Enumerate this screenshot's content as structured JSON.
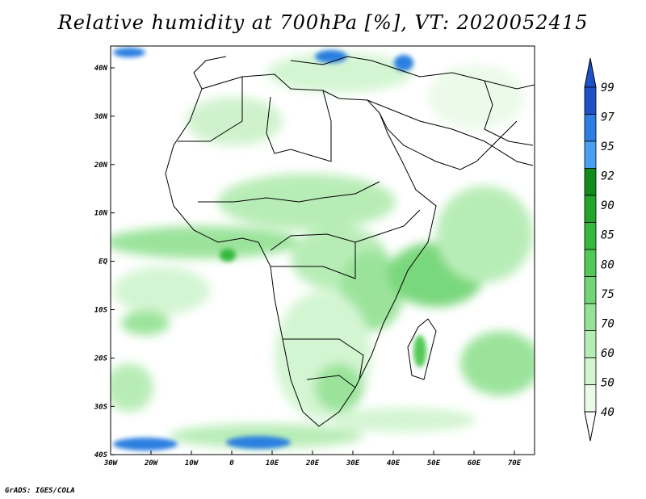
{
  "title": "Relative humidity at 700hPa [%], VT: 2020052415",
  "footer": "GrADS: IGES/COLA",
  "map": {
    "lon_labels": [
      "30W",
      "20W",
      "10W",
      "0",
      "10E",
      "20E",
      "30E",
      "40E",
      "50E",
      "60E",
      "70E"
    ],
    "lat_labels": [
      "40N",
      "30N",
      "20N",
      "10N",
      "EQ",
      "10S",
      "20S",
      "30S",
      "40S"
    ],
    "lon_range": [
      -30,
      75
    ],
    "lat_range": [
      -40,
      45
    ]
  },
  "colorbar": {
    "levels": [
      "99",
      "97",
      "95",
      "92",
      "90",
      "85",
      "80",
      "75",
      "70",
      "60",
      "50",
      "40"
    ],
    "colors": [
      "#1e50c8",
      "#2c7fe0",
      "#4aa0f0",
      "#0f8c19",
      "#22a52a",
      "#36b83e",
      "#52c956",
      "#73d676",
      "#96e296",
      "#b5ecb4",
      "#d2f5d0",
      "#ebfae9"
    ]
  }
}
